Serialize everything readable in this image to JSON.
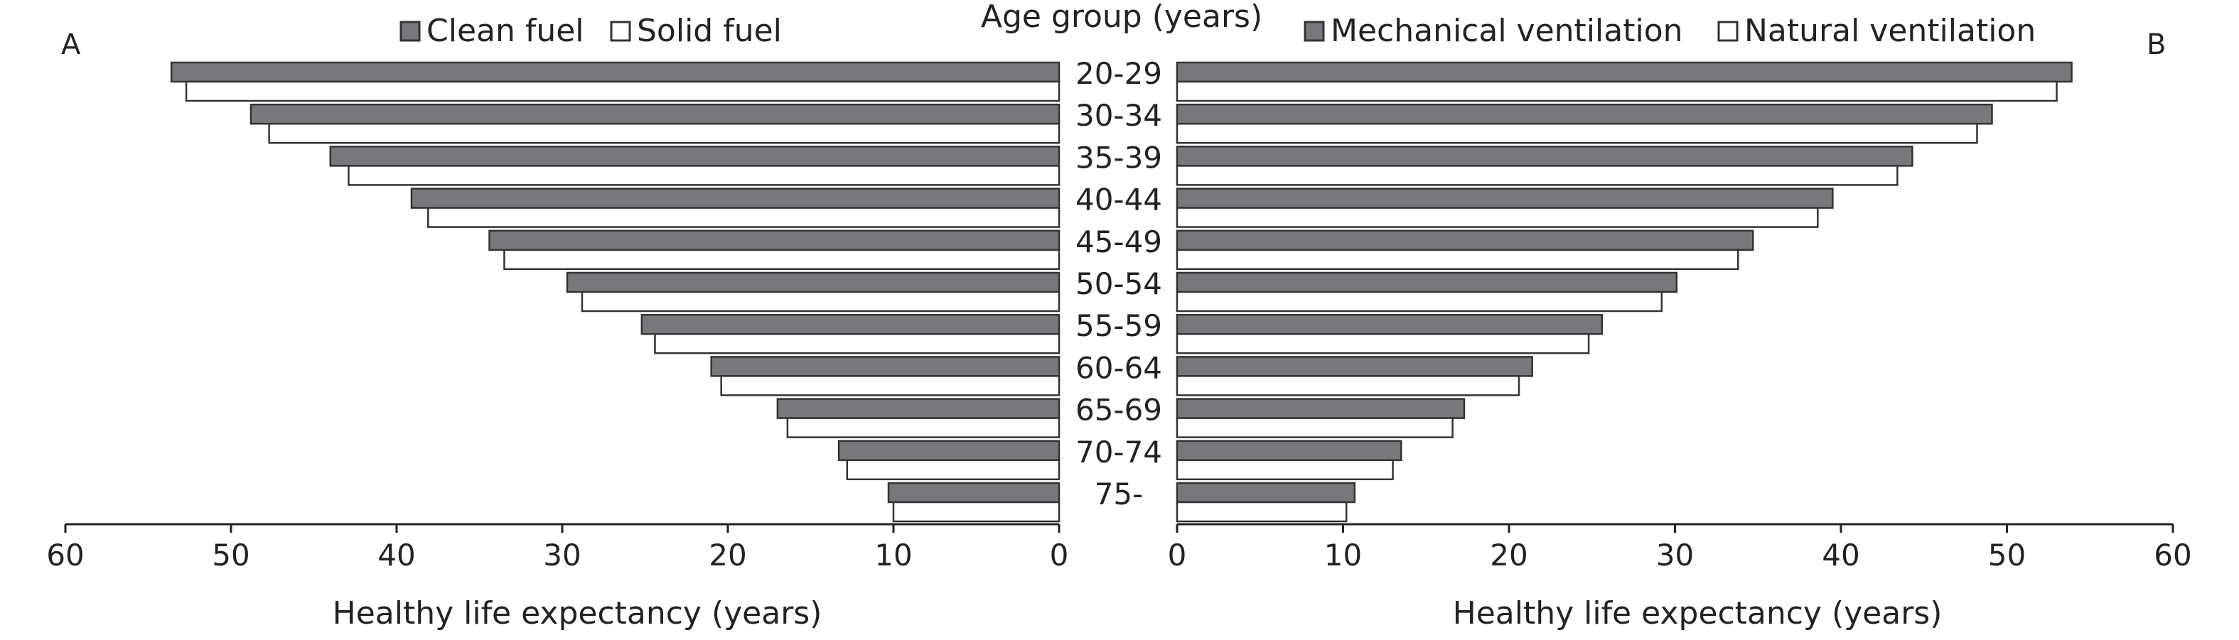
{
  "chart_data": [
    {
      "panel_label": "A",
      "type": "bar",
      "orientation": "horizontal",
      "direction": "right-to-left",
      "categories": [
        "20-29",
        "30-34",
        "35-39",
        "40-44",
        "45-49",
        "50-54",
        "55-59",
        "60-64",
        "65-69",
        "70-74",
        "75-"
      ],
      "series": [
        {
          "name": "Clean fuel",
          "color": "#77787b",
          "values": [
            53.6,
            48.8,
            44.0,
            39.1,
            34.4,
            29.7,
            25.2,
            21.0,
            17.0,
            13.3,
            10.3
          ]
        },
        {
          "name": "Solid fuel",
          "color": "#ffffff",
          "values": [
            52.7,
            47.7,
            42.9,
            38.1,
            33.5,
            28.8,
            24.4,
            20.4,
            16.4,
            12.8,
            10.0
          ]
        }
      ],
      "xlabel": "Healthy life expectancy (years)",
      "xlim": [
        0,
        60
      ],
      "xticks": [
        "60",
        "50",
        "40",
        "30",
        "20",
        "10",
        "0"
      ],
      "legend_position": "top",
      "grid": false
    },
    {
      "panel_label": "B",
      "type": "bar",
      "orientation": "horizontal",
      "direction": "left-to-right",
      "categories": [
        "20-29",
        "30-34",
        "35-39",
        "40-44",
        "45-49",
        "50-54",
        "55-59",
        "60-64",
        "65-69",
        "70-74",
        "75-"
      ],
      "series": [
        {
          "name": "Mechanical ventilation",
          "color": "#77787b",
          "values": [
            53.9,
            49.1,
            44.3,
            39.5,
            34.7,
            30.1,
            25.6,
            21.4,
            17.3,
            13.5,
            10.7
          ]
        },
        {
          "name": "Natural ventilation",
          "color": "#ffffff",
          "values": [
            53.0,
            48.2,
            43.4,
            38.6,
            33.8,
            29.2,
            24.8,
            20.6,
            16.6,
            13.0,
            10.2
          ]
        }
      ],
      "xlabel": "Healthy life expectancy (years)",
      "xlim": [
        0,
        60
      ],
      "xticks": [
        "0",
        "10",
        "20",
        "30",
        "40",
        "50",
        "60"
      ],
      "legend_position": "top",
      "grid": false
    }
  ],
  "center_axis_title": "Age group (years)"
}
